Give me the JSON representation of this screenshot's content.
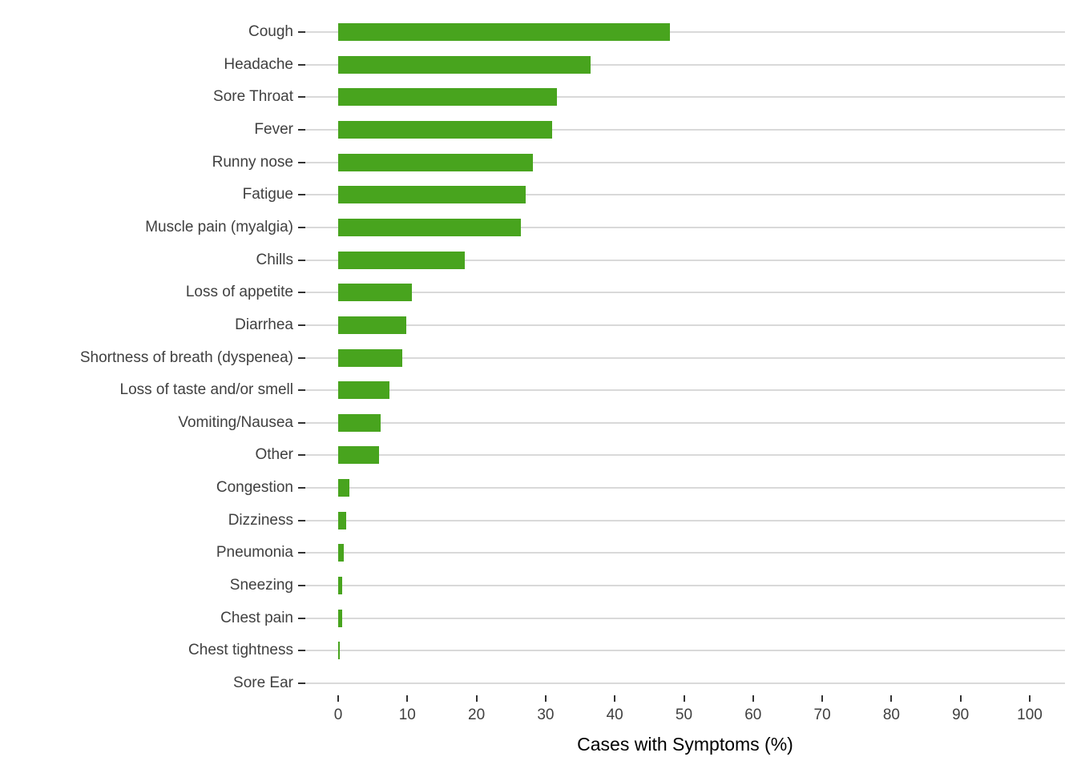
{
  "chart_data": {
    "type": "bar",
    "orientation": "horizontal",
    "title": "",
    "xlabel": "Cases with Symptoms (%)",
    "ylabel": "",
    "xlim": [
      0,
      100
    ],
    "x_ticks": [
      0,
      10,
      20,
      30,
      40,
      50,
      60,
      70,
      80,
      90,
      100
    ],
    "grid": "horizontal-major-only",
    "legend": "none",
    "categories": [
      "Cough",
      "Headache",
      "Sore Throat",
      "Fever",
      "Runny nose",
      "Fatigue",
      "Muscle pain (myalgia)",
      "Chills",
      "Loss of appetite",
      "Diarrhea",
      "Shortness of breath (dyspenea)",
      "Loss of taste and/or smell",
      "Vomiting/Nausea",
      "Other",
      "Congestion",
      "Dizziness",
      "Pneumonia",
      "Sneezing",
      "Chest pain",
      "Chest tightness",
      "Sore Ear"
    ],
    "values": [
      48.0,
      36.5,
      31.6,
      30.9,
      28.2,
      27.1,
      26.4,
      18.3,
      10.7,
      9.9,
      9.3,
      7.4,
      6.1,
      5.9,
      1.6,
      1.2,
      0.8,
      0.55,
      0.55,
      0.2,
      0
    ],
    "colors": {
      "bar": "#48a41e",
      "grid": "#d9d9d9",
      "axis_text": "#404040",
      "tick": "#333333",
      "axis_title": "#000000",
      "background": "#ffffff"
    }
  }
}
